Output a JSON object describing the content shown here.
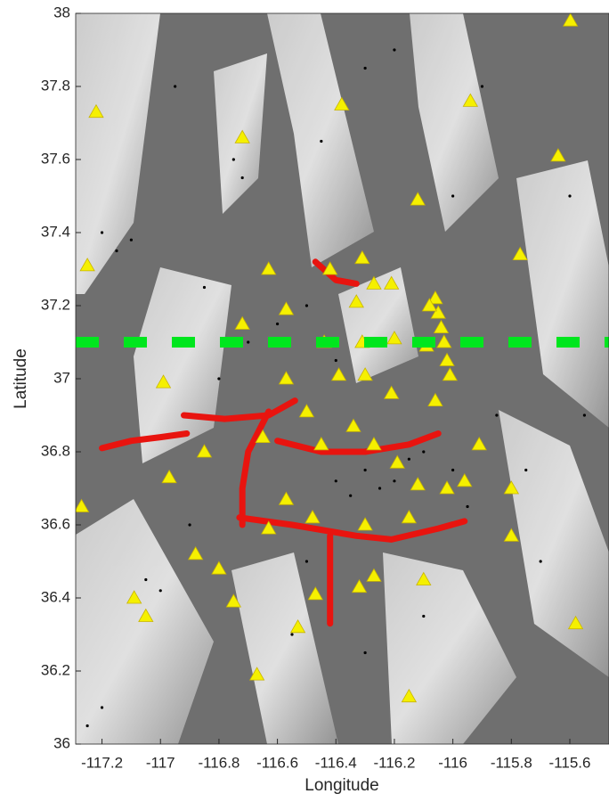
{
  "chart_data": {
    "type": "scatter",
    "x_label": "Longitude",
    "y_label": "Latitude",
    "xlim": [
      -117.29,
      -115.466
    ],
    "ylim": [
      36,
      38
    ],
    "xticks": [
      -117.2,
      -117,
      -116.8,
      -116.6,
      -116.4,
      -116.2,
      -116,
      -115.8,
      -115.6
    ],
    "yticks": [
      36,
      36.2,
      36.4,
      36.6,
      36.8,
      37,
      37.2,
      37.4,
      37.6,
      37.8,
      38
    ],
    "series": [
      {
        "marker": "dot",
        "color": "#000000",
        "x": [
          -117.15,
          -117.2,
          -117.1,
          -116.75,
          -116.72,
          -116.3,
          -116.2,
          -115.9,
          -116.0,
          -116.5,
          -116.6,
          -116.4,
          -116.3,
          -116.25,
          -116.2,
          -116.15,
          -116.1,
          -116.35,
          -116.4,
          -116.0,
          -115.95,
          -115.85,
          -115.75,
          -117.05,
          -117.0,
          -116.9,
          -116.5,
          -116.55,
          -116.3,
          -116.1,
          -115.7,
          -117.25,
          -117.2,
          -116.8,
          -116.7,
          -116.85,
          -115.6,
          -115.55,
          -116.45,
          -116.95
        ],
        "values": [
          37.35,
          37.4,
          37.38,
          37.6,
          37.55,
          37.85,
          37.9,
          37.8,
          37.5,
          37.2,
          37.15,
          37.05,
          36.75,
          36.7,
          36.72,
          36.78,
          36.8,
          36.68,
          36.72,
          36.75,
          36.65,
          36.9,
          36.75,
          36.45,
          36.42,
          36.6,
          36.5,
          36.3,
          36.25,
          36.35,
          36.5,
          36.05,
          36.1,
          37.0,
          37.1,
          37.25,
          37.5,
          36.9,
          37.65,
          37.8
        ]
      },
      {
        "marker": "line",
        "color": "#e8140f",
        "x": [
          -117.2,
          -117.1,
          -117.0,
          -116.91
        ],
        "values": [
          36.81,
          36.83,
          36.84,
          36.85
        ]
      },
      {
        "marker": "line",
        "color": "#e8140f",
        "x": [
          -116.92,
          -116.78,
          -116.63,
          -116.54
        ],
        "values": [
          36.9,
          36.89,
          36.9,
          36.94
        ]
      },
      {
        "marker": "line",
        "color": "#e8140f",
        "x": [
          -116.63,
          -116.7,
          -116.72,
          -116.72
        ],
        "values": [
          36.91,
          36.8,
          36.7,
          36.6
        ]
      },
      {
        "marker": "line",
        "color": "#e8140f",
        "x": [
          -116.6,
          -116.45,
          -116.3,
          -116.15,
          -116.05
        ],
        "values": [
          36.83,
          36.8,
          36.8,
          36.82,
          36.85
        ]
      },
      {
        "marker": "line",
        "color": "#e8140f",
        "x": [
          -116.73,
          -116.55,
          -116.33,
          -116.21,
          -116.05,
          -115.96
        ],
        "values": [
          36.62,
          36.6,
          36.57,
          36.56,
          36.59,
          36.61
        ]
      },
      {
        "marker": "line",
        "color": "#e8140f",
        "x": [
          -116.42,
          -116.42,
          -116.42
        ],
        "values": [
          36.57,
          36.45,
          36.33
        ]
      },
      {
        "marker": "line",
        "color": "#e8140f",
        "x": [
          -116.47,
          -116.4,
          -116.33
        ],
        "values": [
          37.32,
          37.27,
          37.26
        ]
      },
      {
        "marker": "triangle",
        "color": "#f5f000",
        "x": [
          -115.598,
          -117.22,
          -116.72,
          -116.38,
          -115.94,
          -115.64,
          -116.12,
          -115.77,
          -117.25,
          -116.63,
          -116.57,
          -116.72,
          -116.99,
          -116.97,
          -116.85,
          -117.27,
          -117.09,
          -117.05,
          -116.88,
          -116.8,
          -116.75,
          -116.67,
          -116.53,
          -116.47,
          -116.32,
          -116.27,
          -116.1,
          -116.15,
          -115.8,
          -115.58,
          -115.8,
          -115.91,
          -115.96,
          -116.06,
          -116.21,
          -116.3,
          -116.39,
          -116.57,
          -116.65,
          -116.5,
          -116.45,
          -116.34,
          -116.27,
          -116.19,
          -116.12,
          -116.02,
          -116.57,
          -116.48,
          -116.63,
          -116.3,
          -116.15,
          -116.42,
          -116.31,
          -116.27,
          -116.21,
          -116.33,
          -116.2,
          -116.31,
          -116.44,
          -116.09,
          -116.06,
          -116.05,
          -116.04,
          -116.03,
          -116.02,
          -116.01,
          -116.08
        ],
        "values": [
          37.98,
          37.73,
          37.66,
          37.75,
          37.76,
          37.61,
          37.49,
          37.34,
          37.31,
          37.3,
          37.19,
          37.15,
          36.99,
          36.73,
          36.8,
          36.65,
          36.4,
          36.35,
          36.52,
          36.48,
          36.39,
          36.19,
          36.32,
          36.41,
          36.43,
          36.46,
          36.45,
          36.13,
          36.57,
          36.33,
          36.7,
          36.82,
          36.72,
          36.94,
          36.96,
          37.01,
          37.01,
          37.0,
          36.84,
          36.91,
          36.82,
          36.87,
          36.82,
          36.77,
          36.71,
          36.7,
          36.67,
          36.62,
          36.59,
          36.6,
          36.62,
          37.3,
          37.33,
          37.26,
          37.26,
          37.21,
          37.11,
          37.1,
          37.1,
          37.09,
          37.22,
          37.18,
          37.14,
          37.1,
          37.05,
          37.01,
          37.2
        ]
      },
      {
        "marker": "dashed",
        "color": "#00e61e",
        "x": [
          -117.29,
          -115.466
        ],
        "values": [
          37.1,
          37.1
        ]
      }
    ]
  }
}
